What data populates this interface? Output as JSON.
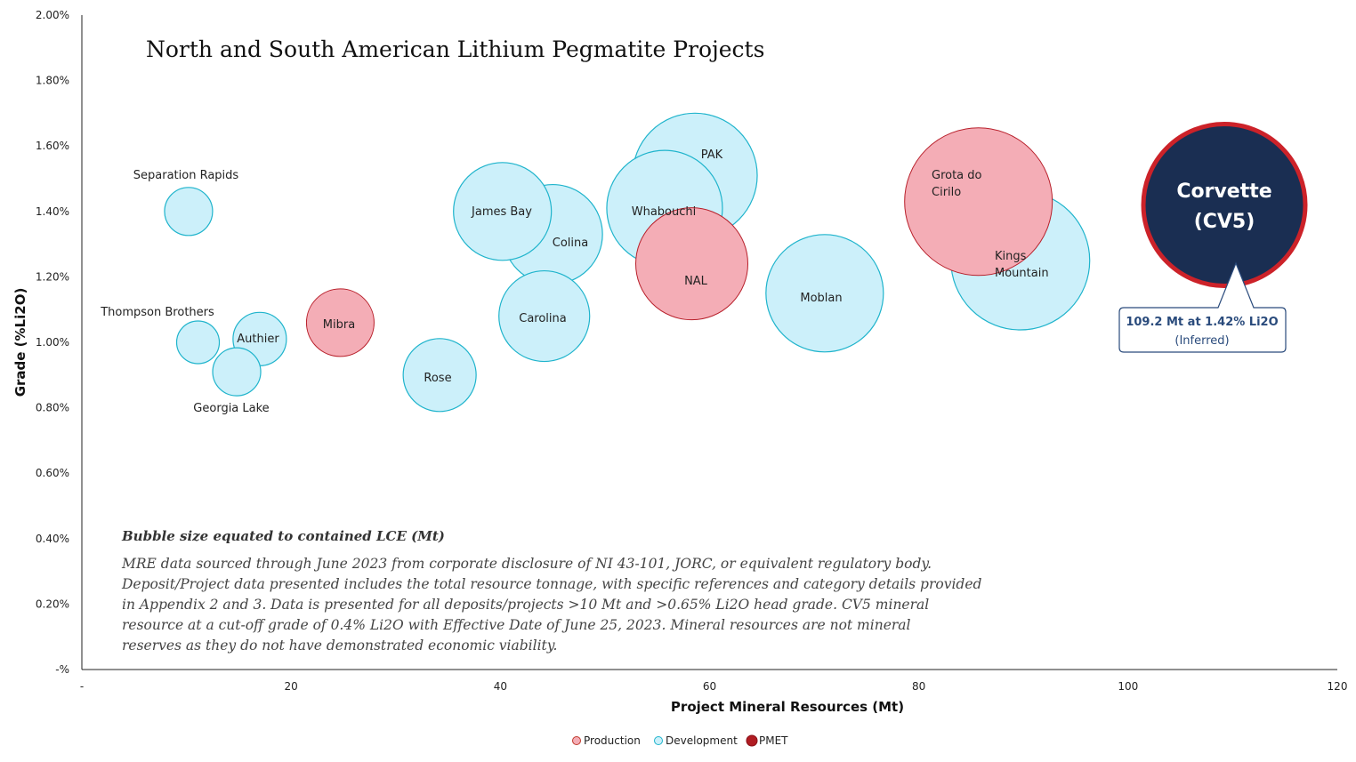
{
  "chart_data": {
    "type": "bubble",
    "title": "North and South American Lithium Pegmatite Projects",
    "xlabel": "Project Mineral Resources (Mt)",
    "ylabel": "Grade (%Li2O)",
    "xlim": [
      0,
      120
    ],
    "ylim": [
      0,
      2.0
    ],
    "x_ticks": [
      "-",
      "20",
      "40",
      "60",
      "80",
      "100",
      "120"
    ],
    "y_ticks": [
      "-%",
      "0.20%",
      "0.40%",
      "0.60%",
      "0.80%",
      "1.00%",
      "1.20%",
      "1.40%",
      "1.60%",
      "1.80%",
      "2.00%"
    ],
    "grid": false,
    "legend_position": "bottom",
    "legend": [
      {
        "name": "Production",
        "color": "#f4adb6",
        "stroke": "#c0392b"
      },
      {
        "name": "Development",
        "color": "#ccf0fa",
        "stroke": "#1fb4cc"
      },
      {
        "name": "PMET",
        "color": "#b01c22",
        "stroke": "#8a1017"
      }
    ],
    "series": [
      {
        "name": "Development",
        "points": [
          {
            "label": "Separation Rapids",
            "x": 10.2,
            "y": 1.4,
            "r": 27,
            "label_pos": "above"
          },
          {
            "label": "Thompson Brothers",
            "x": 11.1,
            "y": 1.0,
            "r": 24,
            "label_pos": "upper-left"
          },
          {
            "label": "Authier",
            "x": 17.0,
            "y": 1.01,
            "r": 30,
            "label_pos": "center"
          },
          {
            "label": "Georgia Lake",
            "x": 14.8,
            "y": 0.91,
            "r": 27,
            "label_pos": "below"
          },
          {
            "label": "Rose",
            "x": 34.2,
            "y": 0.9,
            "r": 41,
            "label_pos": "center"
          },
          {
            "label": "Colina",
            "x": 45.0,
            "y": 1.33,
            "r": 56,
            "label_pos": "right"
          },
          {
            "label": "James Bay",
            "x": 40.2,
            "y": 1.4,
            "r": 55,
            "label_pos": "center"
          },
          {
            "label": "Carolina",
            "x": 44.2,
            "y": 1.08,
            "r": 51,
            "label_pos": "center"
          },
          {
            "label": "PAK",
            "x": 58.6,
            "y": 1.51,
            "r": 70,
            "label_pos": "top"
          },
          {
            "label": "Whabouchi",
            "x": 55.7,
            "y": 1.41,
            "r": 65,
            "label_pos": "center"
          },
          {
            "label": "Moblan",
            "x": 71.0,
            "y": 1.15,
            "r": 66,
            "label_pos": "center"
          },
          {
            "label": "Kings Mountain",
            "x": 89.7,
            "y": 1.25,
            "r": 78,
            "label_pos": "center"
          }
        ]
      },
      {
        "name": "Production",
        "points": [
          {
            "label": "Mibra",
            "x": 24.7,
            "y": 1.06,
            "r": 38,
            "label_pos": "center"
          },
          {
            "label": "NAL",
            "x": 58.3,
            "y": 1.24,
            "r": 63,
            "label_pos": "center"
          },
          {
            "label": "Grota do Cirilo",
            "x": 85.7,
            "y": 1.43,
            "r": 83,
            "label_pos": "upper-left"
          }
        ]
      },
      {
        "name": "PMET",
        "points": [
          {
            "label": "Corvette (CV5)",
            "x": 109.2,
            "y": 1.42,
            "r": 91,
            "label_pos": "center"
          }
        ]
      }
    ],
    "labels": {
      "separation_rapids": "Separation Rapids",
      "thompson_brothers": "Thompson Brothers",
      "authier": "Authier",
      "georgia_lake": "Georgia Lake",
      "rose": "Rose",
      "colina": "Colina",
      "james_bay": "James Bay",
      "carolina": "Carolina",
      "pak": "PAK",
      "whabouchi": "Whabouchi",
      "moblan": "Moblan",
      "kings_mountain_1": "Kings",
      "kings_mountain_2": "Mountain",
      "mibra": "Mibra",
      "nal": "NAL",
      "grota_1": "Grota do",
      "grota_2": "Cirilo",
      "corvette_1": "Corvette",
      "corvette_2": "(CV5)"
    },
    "callout": {
      "line1": "109.2 Mt at 1.42% Li2O",
      "line2": "(Inferred)"
    },
    "annotation": {
      "heading": "Bubble size equated to contained LCE (Mt)",
      "lines": [
        "MRE data sourced through June 2023 from corporate disclosure of NI 43-101, JORC, or equivalent regulatory body.",
        "Deposit/Project data presented includes the total resource tonnage, with specific references and category details provided",
        "in Appendix 2 and 3. Data is presented for all deposits/projects >10 Mt and >0.65% Li2O head grade. CV5 mineral",
        "resource at a cut-off grade of 0.4% Li2O with Effective Date of June 25, 2023. Mineral resources are not mineral",
        "reserves as they do not have demonstrated economic viability."
      ]
    },
    "colors": {
      "development_fill": "#ccf0fa",
      "development_stroke": "#1fb4cc",
      "production_fill": "#f4adb6",
      "production_stroke": "#b8202b",
      "pmet_fill": "#1a2e52",
      "pmet_stroke": "#cc2229",
      "callout_stroke": "#2a4b7c"
    }
  }
}
